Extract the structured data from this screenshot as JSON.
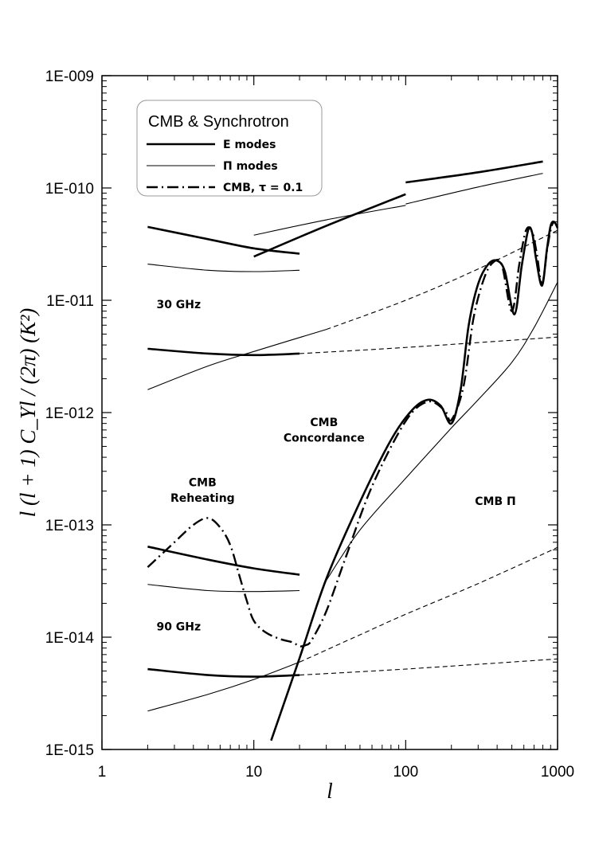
{
  "chart_data": {
    "type": "line",
    "xlabel": "l",
    "ylabel": "l (l + 1) C_Yl / (2π) (K²)",
    "xscale": "log",
    "yscale": "log",
    "xlim": [
      1,
      1000
    ],
    "ylim": [
      1e-15,
      1e-09
    ],
    "x_ticks": [
      {
        "value": 1,
        "label": "1"
      },
      {
        "value": 10,
        "label": "10"
      },
      {
        "value": 100,
        "label": "100"
      },
      {
        "value": 1000,
        "label": "1000"
      }
    ],
    "y_ticks": [
      {
        "value": 1e-15,
        "label": "1E-015"
      },
      {
        "value": 1e-14,
        "label": "1E-014"
      },
      {
        "value": 1e-13,
        "label": "1E-013"
      },
      {
        "value": 1e-12,
        "label": "1E-012"
      },
      {
        "value": 1e-11,
        "label": "1E-011"
      },
      {
        "value": 1e-10,
        "label": "1E-010"
      },
      {
        "value": 1e-09,
        "label": "1E-009"
      }
    ],
    "legend": {
      "placement": "top-left",
      "title": "CMB & Synchrotron",
      "entries": [
        {
          "label": "E modes",
          "style": "thick-solid"
        },
        {
          "label": "Π modes",
          "style": "thin-solid"
        },
        {
          "label": "CMB, τ = 0.1",
          "style": "dash-dot"
        }
      ]
    },
    "annotations": [
      {
        "text": "30 GHz",
        "x": 3.2,
        "y": 8.5e-12
      },
      {
        "text": "90 GHz",
        "x": 3.2,
        "y": 1.15e-14
      },
      {
        "text": "CMB",
        "x": 4.6,
        "y": 2.2e-13
      },
      {
        "text": "Reheating",
        "x": 4.6,
        "y": 1.6e-13
      },
      {
        "text": "CMB",
        "x": 29,
        "y": 7.6e-13
      },
      {
        "text": "Concordance",
        "x": 29,
        "y": 5.5e-13
      },
      {
        "text": "CMB Π",
        "x": 390,
        "y": 1.5e-13
      }
    ],
    "series": [
      {
        "style": "thick-solid",
        "x": [
          2,
          5,
          10,
          20
        ],
        "y": [
          4.5e-11,
          3.5e-11,
          2.9e-11,
          2.6e-11
        ]
      },
      {
        "style": "thick-solid",
        "x": [
          10,
          30,
          100
        ],
        "y": [
          2.45e-11,
          4.6e-11,
          8.8e-11
        ]
      },
      {
        "style": "thick-solid",
        "x": [
          100,
          300,
          800
        ],
        "y": [
          1.12e-10,
          1.38e-10,
          1.72e-10
        ]
      },
      {
        "style": "thin-solid",
        "x": [
          2,
          5,
          10,
          20
        ],
        "y": [
          2.1e-11,
          1.85e-11,
          1.8e-11,
          1.85e-11
        ]
      },
      {
        "style": "thin-solid",
        "x": [
          10,
          30,
          100
        ],
        "y": [
          3.8e-11,
          5.2e-11,
          7e-11
        ]
      },
      {
        "style": "thin-solid",
        "x": [
          100,
          300,
          800
        ],
        "y": [
          7.2e-11,
          1.02e-10,
          1.35e-10
        ]
      },
      {
        "style": "thick-solid",
        "x": [
          2,
          5,
          10,
          20
        ],
        "y": [
          3.7e-12,
          3.35e-12,
          3.25e-12,
          3.35e-12
        ]
      },
      {
        "style": "dashed",
        "x": [
          20,
          100,
          1000
        ],
        "y": [
          3.35e-12,
          3.8e-12,
          4.7e-12
        ]
      },
      {
        "style": "thin-solid",
        "x": [
          2,
          5,
          10,
          30
        ],
        "y": [
          1.6e-12,
          2.6e-12,
          3.5e-12,
          5.5e-12
        ]
      },
      {
        "style": "dashed",
        "x": [
          30,
          100,
          300,
          1000
        ],
        "y": [
          5.5e-12,
          1e-11,
          1.9e-11,
          4.2e-11
        ]
      },
      {
        "style": "thick-solid",
        "x": [
          2,
          5,
          10,
          20
        ],
        "y": [
          6.4e-14,
          4.9e-14,
          4.1e-14,
          3.6e-14
        ]
      },
      {
        "style": "thin-solid",
        "x": [
          2,
          5,
          10,
          20
        ],
        "y": [
          2.95e-14,
          2.6e-14,
          2.55e-14,
          2.6e-14
        ]
      },
      {
        "style": "thick-solid",
        "x": [
          2,
          5,
          10,
          20
        ],
        "y": [
          5.2e-15,
          4.6e-15,
          4.45e-15,
          4.6e-15
        ]
      },
      {
        "style": "dashed",
        "x": [
          20,
          100,
          1000
        ],
        "y": [
          4.6e-15,
          5.2e-15,
          6.4e-15
        ]
      },
      {
        "style": "thin-solid",
        "x": [
          2,
          5,
          10,
          20
        ],
        "y": [
          2.2e-15,
          3.1e-15,
          4.2e-15,
          6e-15
        ]
      },
      {
        "style": "dashed",
        "x": [
          20,
          50,
          100,
          300,
          1000
        ],
        "y": [
          6e-15,
          1.05e-14,
          1.6e-14,
          3e-14,
          6.3e-14
        ]
      },
      {
        "style": "thick-solid",
        "x": [
          13,
          20,
          30,
          50,
          80,
          110,
          140,
          170,
          200,
          230,
          260,
          300,
          350,
          400,
          450,
          520,
          580,
          640,
          680,
          720,
          790,
          850,
          900,
          950,
          1000
        ],
        "y": [
          1.2e-15,
          6.5e-15,
          3.3e-14,
          1.6e-13,
          5.7e-13,
          1.05e-12,
          1.3e-12,
          1.15e-12,
          8e-13,
          1.6e-12,
          6e-12,
          1.4e-11,
          2.1e-11,
          2.25e-11,
          1.8e-11,
          7.5e-12,
          2e-11,
          4.2e-11,
          4e-11,
          2.4e-11,
          1.35e-11,
          2.8e-11,
          4.6e-11,
          5e-11,
          4.4e-11
        ]
      },
      {
        "style": "thin-solid",
        "x": [
          30,
          50,
          100,
          200,
          300,
          500,
          700,
          1000
        ],
        "y": [
          3.2e-14,
          9e-14,
          2.6e-13,
          7.3e-13,
          1.3e-12,
          2.8e-12,
          5.7e-12,
          1.45e-11
        ]
      },
      {
        "style": "dash-dot",
        "x": [
          2,
          3,
          4,
          5,
          6,
          7,
          8,
          9,
          10,
          12,
          15,
          18,
          20,
          22,
          24,
          30,
          40,
          60,
          100,
          140,
          180,
          200,
          240,
          280,
          330,
          380,
          430,
          500,
          560,
          620,
          680,
          730,
          790,
          860,
          920,
          980
        ],
        "y": [
          4.2e-14,
          7e-14,
          1e-13,
          1.15e-13,
          9.5e-14,
          6.6e-14,
          3.6e-14,
          2.1e-14,
          1.4e-14,
          1.1e-14,
          9.6e-15,
          9e-15,
          8.3e-15,
          8.5e-15,
          9.4e-15,
          1.7e-14,
          5e-14,
          2.2e-13,
          8.4e-13,
          1.25e-12,
          1.05e-12,
          8.6e-13,
          1.7e-12,
          7e-12,
          1.6e-11,
          2.2e-11,
          2.05e-11,
          8e-12,
          2.1e-11,
          4.2e-11,
          4.1e-11,
          2.6e-11,
          1.4e-11,
          3e-11,
          4.7e-11,
          4.9e-11
        ]
      }
    ]
  }
}
